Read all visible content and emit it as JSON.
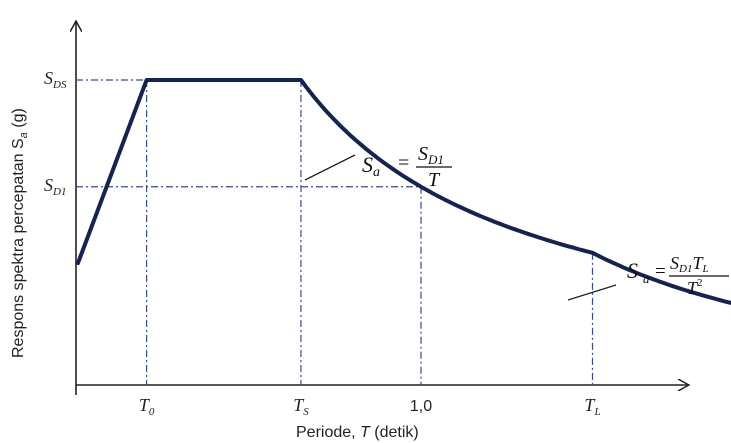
{
  "chart_data": {
    "type": "line",
    "ylabel": "Respons spektra percepatan S",
    "ylabel_sub": "a",
    "ylabel_unit": " (g)",
    "xlabel": "Periode, ",
    "xlabel_var": "T",
    "xlabel_unit": " (detik)",
    "grid": false,
    "colors": {
      "curve": "#16234f",
      "guides": "#3a4a8a",
      "axis": "#222222"
    },
    "params": {
      "T0": 0.2,
      "TS": 0.65,
      "T1": 1.0,
      "TL": 1.5,
      "Tmax": 1.95,
      "SDS": 1.0,
      "SD1": 0.65,
      "S0": 0.4
    },
    "x_ticks": [
      {
        "t": 0.2,
        "main": "T",
        "sub": "0"
      },
      {
        "t": 0.65,
        "main": "T",
        "sub": "S"
      },
      {
        "t": 1.0,
        "main": "1,0",
        "sub": ""
      },
      {
        "t": 1.5,
        "main": "T",
        "sub": "L"
      }
    ],
    "y_ticks": [
      {
        "s": 1.0,
        "main": "S",
        "sub": "DS"
      },
      {
        "s": 0.65,
        "main": "S",
        "sub": "D1"
      }
    ],
    "annotations": {
      "mid": {
        "lhs": "S",
        "lhs_sub": "a",
        "eq": "=",
        "num": "S",
        "num_sub": "D1",
        "den": "T"
      },
      "tail": {
        "lhs": "S",
        "lhs_sub": "a",
        "eq": "=",
        "num": "S",
        "num_sub": "D1",
        "num_tail": "T",
        "num_tail_sub": "L",
        "den": "T",
        "den_sup": "2"
      }
    }
  }
}
